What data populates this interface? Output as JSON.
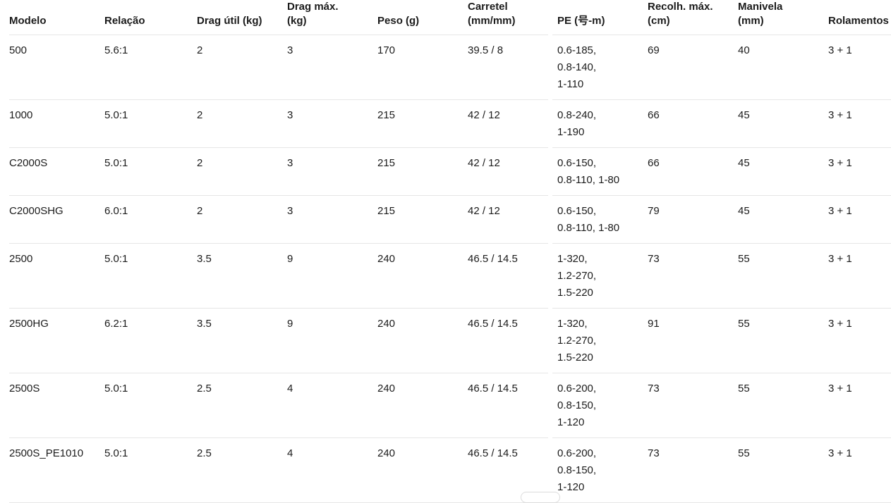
{
  "colors": {
    "background": "#ffffff",
    "text": "#1b1b1b",
    "divider": "#e6e6e6",
    "scrollbar": "#dcdcdc"
  },
  "table": {
    "columns": [
      {
        "id": "modelo",
        "label_lines": [
          "Modelo"
        ]
      },
      {
        "id": "relacao",
        "label_lines": [
          "Relação"
        ]
      },
      {
        "id": "drag_util",
        "label_lines": [
          "Drag útil (kg)"
        ]
      },
      {
        "id": "drag_max",
        "label_lines": [
          "Drag máx.",
          "(kg)"
        ]
      },
      {
        "id": "peso",
        "label_lines": [
          "Peso (g)"
        ]
      },
      {
        "id": "carretel",
        "label_lines": [
          "Carretel",
          "(mm/mm)"
        ]
      },
      {
        "id": "pe",
        "label_lines": [
          "PE (号-m)"
        ]
      },
      {
        "id": "recolh_max",
        "label_lines": [
          "Recolh. máx.",
          "(cm)"
        ]
      },
      {
        "id": "manivela",
        "label_lines": [
          "Manivela",
          "(mm)"
        ]
      },
      {
        "id": "rolamentos",
        "label_lines": [
          "Rolamentos"
        ]
      }
    ],
    "rows": [
      {
        "modelo": [
          "500"
        ],
        "relacao": [
          "5.6:1"
        ],
        "drag_util": [
          "2"
        ],
        "drag_max": [
          "3"
        ],
        "peso": [
          "170"
        ],
        "carretel": [
          "39.5 / 8"
        ],
        "pe": [
          "0.6-185,",
          "0.8-140,",
          "1-110"
        ],
        "recolh_max": [
          "69"
        ],
        "manivela": [
          "40"
        ],
        "rolamentos": [
          "3 + 1"
        ]
      },
      {
        "modelo": [
          "1000"
        ],
        "relacao": [
          "5.0:1"
        ],
        "drag_util": [
          "2"
        ],
        "drag_max": [
          "3"
        ],
        "peso": [
          "215"
        ],
        "carretel": [
          "42 / 12"
        ],
        "pe": [
          "0.8-240,",
          "1-190"
        ],
        "recolh_max": [
          "66"
        ],
        "manivela": [
          "45"
        ],
        "rolamentos": [
          "3 + 1"
        ]
      },
      {
        "modelo": [
          "C2000S"
        ],
        "relacao": [
          "5.0:1"
        ],
        "drag_util": [
          "2"
        ],
        "drag_max": [
          "3"
        ],
        "peso": [
          "215"
        ],
        "carretel": [
          "42 / 12"
        ],
        "pe": [
          "0.6-150,",
          "0.8-110, 1-80"
        ],
        "recolh_max": [
          "66"
        ],
        "manivela": [
          "45"
        ],
        "rolamentos": [
          "3 + 1"
        ]
      },
      {
        "modelo": [
          "C2000SHG"
        ],
        "relacao": [
          "6.0:1"
        ],
        "drag_util": [
          "2"
        ],
        "drag_max": [
          "3"
        ],
        "peso": [
          "215"
        ],
        "carretel": [
          "42 / 12"
        ],
        "pe": [
          "0.6-150,",
          "0.8-110, 1-80"
        ],
        "recolh_max": [
          "79"
        ],
        "manivela": [
          "45"
        ],
        "rolamentos": [
          "3 + 1"
        ]
      },
      {
        "modelo": [
          "2500"
        ],
        "relacao": [
          "5.0:1"
        ],
        "drag_util": [
          "3.5"
        ],
        "drag_max": [
          "9"
        ],
        "peso": [
          "240"
        ],
        "carretel": [
          "46.5 / 14.5"
        ],
        "pe": [
          "1-320,",
          "1.2-270,",
          "1.5-220"
        ],
        "recolh_max": [
          "73"
        ],
        "manivela": [
          "55"
        ],
        "rolamentos": [
          "3 + 1"
        ]
      },
      {
        "modelo": [
          "2500HG"
        ],
        "relacao": [
          "6.2:1"
        ],
        "drag_util": [
          "3.5"
        ],
        "drag_max": [
          "9"
        ],
        "peso": [
          "240"
        ],
        "carretel": [
          "46.5 / 14.5"
        ],
        "pe": [
          "1-320,",
          "1.2-270,",
          "1.5-220"
        ],
        "recolh_max": [
          "91"
        ],
        "manivela": [
          "55"
        ],
        "rolamentos": [
          "3 + 1"
        ]
      },
      {
        "modelo": [
          "2500S"
        ],
        "relacao": [
          "5.0:1"
        ],
        "drag_util": [
          "2.5"
        ],
        "drag_max": [
          "4"
        ],
        "peso": [
          "240"
        ],
        "carretel": [
          "46.5 / 14.5"
        ],
        "pe": [
          "0.6-200,",
          "0.8-150,",
          "1-120"
        ],
        "recolh_max": [
          "73"
        ],
        "manivela": [
          "55"
        ],
        "rolamentos": [
          "3 + 1"
        ]
      },
      {
        "modelo": [
          "2500S_PE1010"
        ],
        "relacao": [
          "5.0:1"
        ],
        "drag_util": [
          "2.5"
        ],
        "drag_max": [
          "4"
        ],
        "peso": [
          "240"
        ],
        "carretel": [
          "46.5 / 14.5"
        ],
        "pe": [
          "0.6-200,",
          "0.8-150,",
          "1-120"
        ],
        "recolh_max": [
          "73"
        ],
        "manivela": [
          "55"
        ],
        "rolamentos": [
          "3 + 1"
        ]
      }
    ]
  }
}
